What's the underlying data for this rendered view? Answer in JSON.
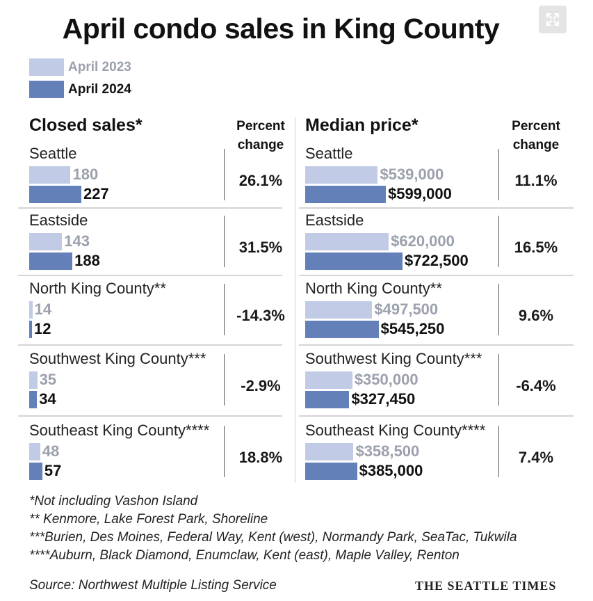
{
  "title": "April condo sales in King County",
  "colors": {
    "y2023": "#c2cbe6",
    "y2024": "#6480b8",
    "old_text": "#9ba0ad"
  },
  "legend": {
    "y2023": "April 2023",
    "y2024": "April 2024"
  },
  "headers": {
    "sales": "Closed sales*",
    "price": "Median price*",
    "pct_line1": "Percent",
    "pct_line2": "change"
  },
  "chart_data": [
    {
      "type": "bar",
      "title": "Closed sales*",
      "categories": [
        "Seattle",
        "Eastside",
        "North King County**",
        "Southwest King County***",
        "Southeast King County****"
      ],
      "series": [
        {
          "name": "April 2023",
          "values": [
            180,
            143,
            14,
            35,
            48
          ],
          "labels": [
            "180",
            "143",
            "14",
            "35",
            "48"
          ]
        },
        {
          "name": "April 2024",
          "values": [
            227,
            188,
            12,
            34,
            57
          ],
          "labels": [
            "227",
            "188",
            "12",
            "34",
            "57"
          ]
        }
      ],
      "percent_change": [
        "26.1%",
        "31.5%",
        "-14.3%",
        "-2.9%",
        "18.8%"
      ]
    },
    {
      "type": "bar",
      "title": "Median price*",
      "categories": [
        "Seattle",
        "Eastside",
        "North King County**",
        "Southwest King County***",
        "Southeast King County****"
      ],
      "series": [
        {
          "name": "April 2023",
          "values": [
            539000,
            620000,
            497500,
            350000,
            358500
          ],
          "labels": [
            "$539,000",
            "$620,000",
            "$497,500",
            "$350,000",
            "$358,500"
          ]
        },
        {
          "name": "April 2024",
          "values": [
            599000,
            722500,
            545250,
            327450,
            385000
          ],
          "labels": [
            "$599,000",
            "$722,500",
            "$545,250",
            "$327,450",
            "$385,000"
          ]
        }
      ],
      "percent_change": [
        "11.1%",
        "16.5%",
        "9.6%",
        "-6.4%",
        "7.4%"
      ]
    }
  ],
  "notes": [
    "*Not including Vashon Island",
    "** Kenmore, Lake Forest Park, Shoreline",
    "***Burien, Des Moines, Federal Way, Kent (west), Normandy Park, SeaTac, Tukwila",
    "****Auburn, Black Diamond, Enumclaw, Kent (east), Maple Valley, Renton"
  ],
  "source": "Source: Northwest Multiple Listing Service",
  "brand": "THE SEATTLE TIMES",
  "icons": {
    "expand": "expand-icon"
  }
}
